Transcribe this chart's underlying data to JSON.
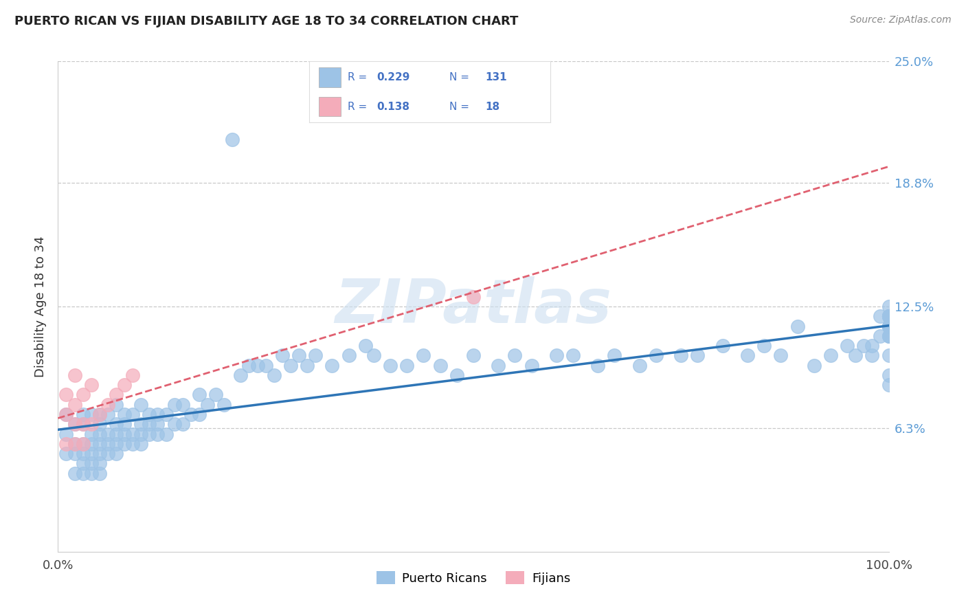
{
  "title": "PUERTO RICAN VS FIJIAN DISABILITY AGE 18 TO 34 CORRELATION CHART",
  "source_text": "Source: ZipAtlas.com",
  "ylabel": "Disability Age 18 to 34",
  "xlim": [
    0.0,
    1.0
  ],
  "ylim": [
    0.0,
    0.25
  ],
  "ytick_vals": [
    0.063,
    0.125,
    0.188,
    0.25
  ],
  "ytick_labels": [
    "6.3%",
    "12.5%",
    "18.8%",
    "25.0%"
  ],
  "xtick_vals": [
    0.0,
    1.0
  ],
  "xtick_labels": [
    "0.0%",
    "100.0%"
  ],
  "legend_blue_color": "#5b9bd5",
  "legend_text_color": "#4472c4",
  "puerto_rican_color": "#9dc3e6",
  "fijian_color": "#f4acba",
  "trend_pr_color": "#2e75b6",
  "trend_fj_color": "#e06070",
  "background_color": "#ffffff",
  "grid_color": "#c8c8c8",
  "watermark_color": "#ccdff0",
  "right_label_color": "#5b9bd5",
  "pr_x": [
    0.01,
    0.01,
    0.01,
    0.02,
    0.02,
    0.02,
    0.02,
    0.03,
    0.03,
    0.03,
    0.03,
    0.03,
    0.03,
    0.04,
    0.04,
    0.04,
    0.04,
    0.04,
    0.04,
    0.05,
    0.05,
    0.05,
    0.05,
    0.05,
    0.05,
    0.05,
    0.06,
    0.06,
    0.06,
    0.06,
    0.07,
    0.07,
    0.07,
    0.07,
    0.07,
    0.08,
    0.08,
    0.08,
    0.08,
    0.09,
    0.09,
    0.09,
    0.1,
    0.1,
    0.1,
    0.1,
    0.11,
    0.11,
    0.11,
    0.12,
    0.12,
    0.12,
    0.13,
    0.13,
    0.14,
    0.14,
    0.15,
    0.15,
    0.16,
    0.17,
    0.17,
    0.18,
    0.19,
    0.2,
    0.21,
    0.22,
    0.23,
    0.24,
    0.25,
    0.26,
    0.27,
    0.28,
    0.29,
    0.3,
    0.31,
    0.33,
    0.35,
    0.37,
    0.38,
    0.4,
    0.42,
    0.44,
    0.46,
    0.48,
    0.5,
    0.53,
    0.55,
    0.57,
    0.6,
    0.62,
    0.65,
    0.67,
    0.7,
    0.72,
    0.75,
    0.77,
    0.8,
    0.83,
    0.85,
    0.87,
    0.89,
    0.91,
    0.93,
    0.95,
    0.96,
    0.97,
    0.98,
    0.98,
    0.99,
    0.99,
    1.0,
    1.0,
    1.0,
    1.0,
    1.0,
    1.0,
    1.0,
    1.0,
    1.0,
    1.0,
    1.0,
    1.0,
    1.0,
    1.0,
    1.0,
    1.0,
    1.0,
    1.0,
    1.0,
    1.0,
    1.0
  ],
  "pr_y": [
    0.05,
    0.06,
    0.07,
    0.04,
    0.05,
    0.055,
    0.065,
    0.04,
    0.045,
    0.05,
    0.055,
    0.065,
    0.07,
    0.04,
    0.045,
    0.05,
    0.055,
    0.06,
    0.07,
    0.04,
    0.045,
    0.05,
    0.055,
    0.06,
    0.065,
    0.07,
    0.05,
    0.055,
    0.06,
    0.07,
    0.05,
    0.055,
    0.06,
    0.065,
    0.075,
    0.055,
    0.06,
    0.065,
    0.07,
    0.055,
    0.06,
    0.07,
    0.055,
    0.06,
    0.065,
    0.075,
    0.06,
    0.065,
    0.07,
    0.06,
    0.065,
    0.07,
    0.06,
    0.07,
    0.065,
    0.075,
    0.065,
    0.075,
    0.07,
    0.07,
    0.08,
    0.075,
    0.08,
    0.075,
    0.21,
    0.09,
    0.095,
    0.095,
    0.095,
    0.09,
    0.1,
    0.095,
    0.1,
    0.095,
    0.1,
    0.095,
    0.1,
    0.105,
    0.1,
    0.095,
    0.095,
    0.1,
    0.095,
    0.09,
    0.1,
    0.095,
    0.1,
    0.095,
    0.1,
    0.1,
    0.095,
    0.1,
    0.095,
    0.1,
    0.1,
    0.1,
    0.105,
    0.1,
    0.105,
    0.1,
    0.115,
    0.095,
    0.1,
    0.105,
    0.1,
    0.105,
    0.1,
    0.105,
    0.11,
    0.12,
    0.115,
    0.12,
    0.115,
    0.12,
    0.11,
    0.12,
    0.115,
    0.12,
    0.115,
    0.12,
    0.12,
    0.12,
    0.11,
    0.115,
    0.12,
    0.11,
    0.085,
    0.09,
    0.1,
    0.115,
    0.125
  ],
  "fj_x": [
    0.01,
    0.01,
    0.01,
    0.02,
    0.02,
    0.02,
    0.02,
    0.03,
    0.03,
    0.03,
    0.04,
    0.04,
    0.05,
    0.06,
    0.07,
    0.08,
    0.09,
    0.5
  ],
  "fj_y": [
    0.055,
    0.07,
    0.08,
    0.055,
    0.065,
    0.075,
    0.09,
    0.055,
    0.065,
    0.08,
    0.065,
    0.085,
    0.07,
    0.075,
    0.08,
    0.085,
    0.09,
    0.13
  ]
}
